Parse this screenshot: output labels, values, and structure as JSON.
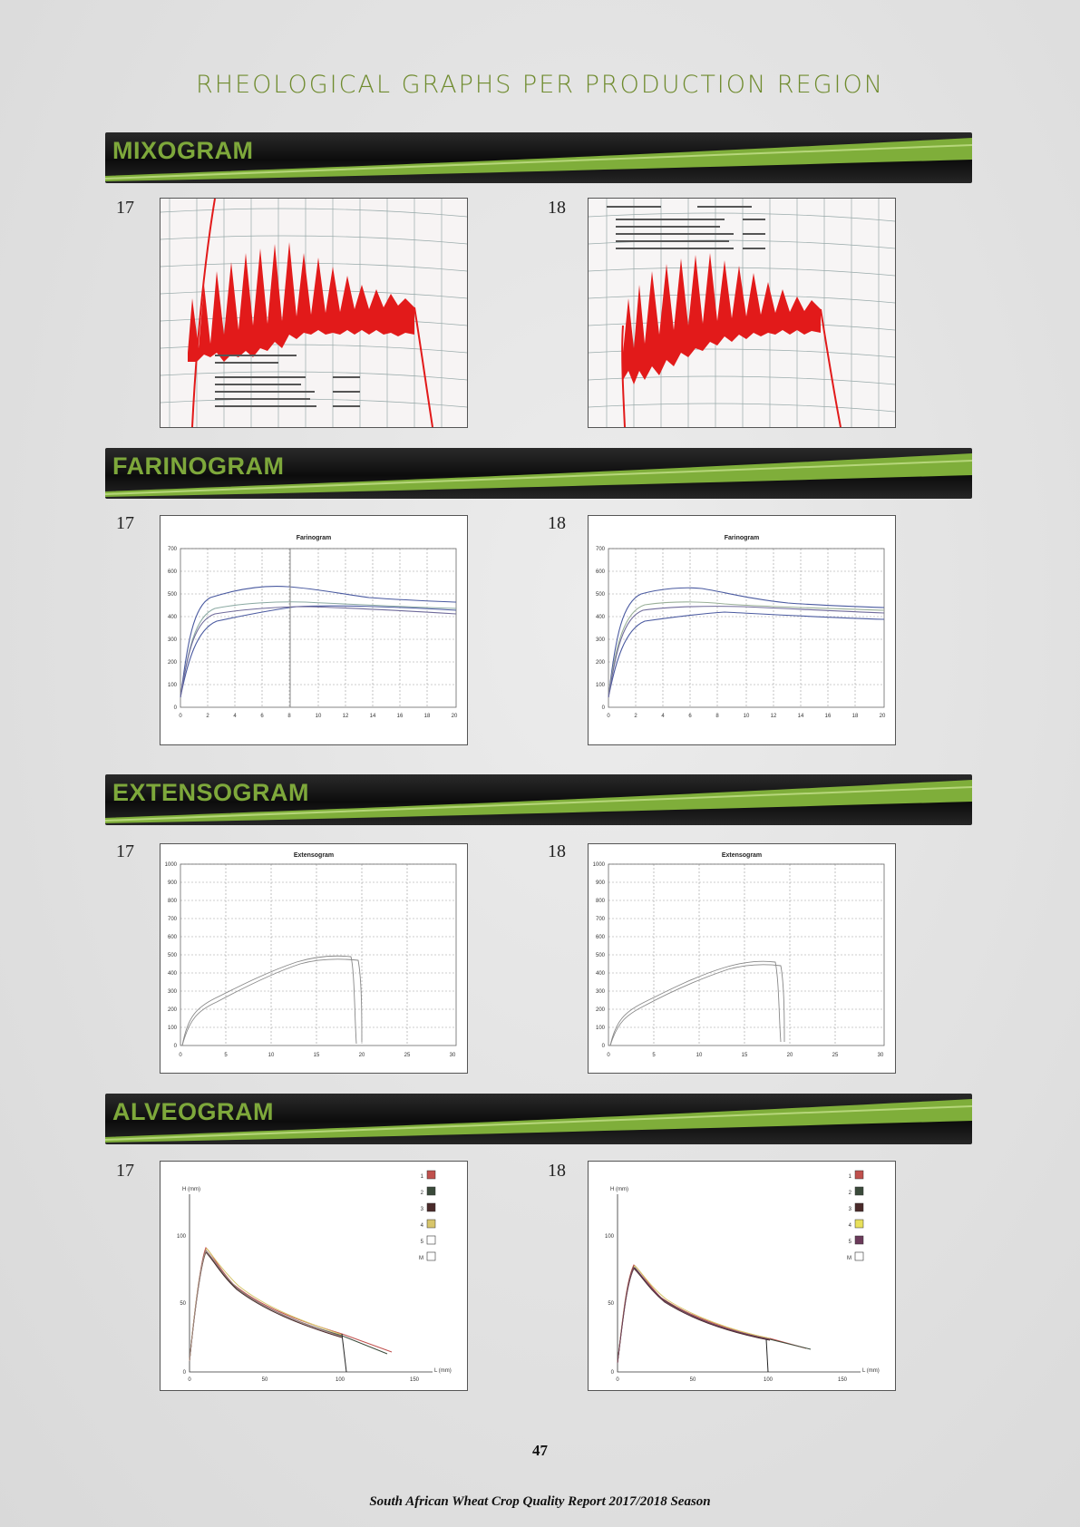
{
  "page_title": "RHEOLOGICAL GRAPHS PER PRODUCTION REGION",
  "sections": {
    "mixogram": {
      "heading": "MIXOGRAM",
      "left_label": "17",
      "right_label": "18"
    },
    "farinogram": {
      "heading": "FARINOGRAM",
      "left_label": "17",
      "right_label": "18",
      "chart_title": "Farinogram",
      "y_ticks": [
        "0",
        "100",
        "200",
        "300",
        "400",
        "500",
        "600",
        "700"
      ],
      "x_ticks": [
        "0",
        "2",
        "4",
        "6",
        "8",
        "10",
        "12",
        "14",
        "16",
        "18",
        "20"
      ]
    },
    "extensogram": {
      "heading": "EXTENSOGRAM",
      "left_label": "17",
      "right_label": "18",
      "chart_title": "Extensogram",
      "y_ticks": [
        "0",
        "100",
        "200",
        "300",
        "400",
        "500",
        "600",
        "700",
        "800",
        "900",
        "1000"
      ],
      "x_ticks": [
        "0",
        "5",
        "10",
        "15",
        "20",
        "25",
        "30"
      ]
    },
    "alveogram": {
      "heading": "ALVEOGRAM",
      "left_label": "17",
      "right_label": "18",
      "y_label": "H (mm)",
      "x_label": "L (mm)",
      "y_ticks": [
        "0",
        "50",
        "100"
      ],
      "x_ticks": [
        "0",
        "50",
        "100",
        "150"
      ],
      "legend_left": [
        "1",
        "2",
        "3",
        "4",
        "5",
        "M"
      ],
      "legend_right": [
        "1",
        "2",
        "3",
        "4",
        "5",
        "M"
      ]
    }
  },
  "colors": {
    "mixo_trace": "#e21a1a",
    "farino_trace": "#4a5aa0",
    "accent_green": "#7ea83b"
  },
  "page_number": "47",
  "footer": "South African Wheat Crop Quality Report 2017/2018 Season"
}
